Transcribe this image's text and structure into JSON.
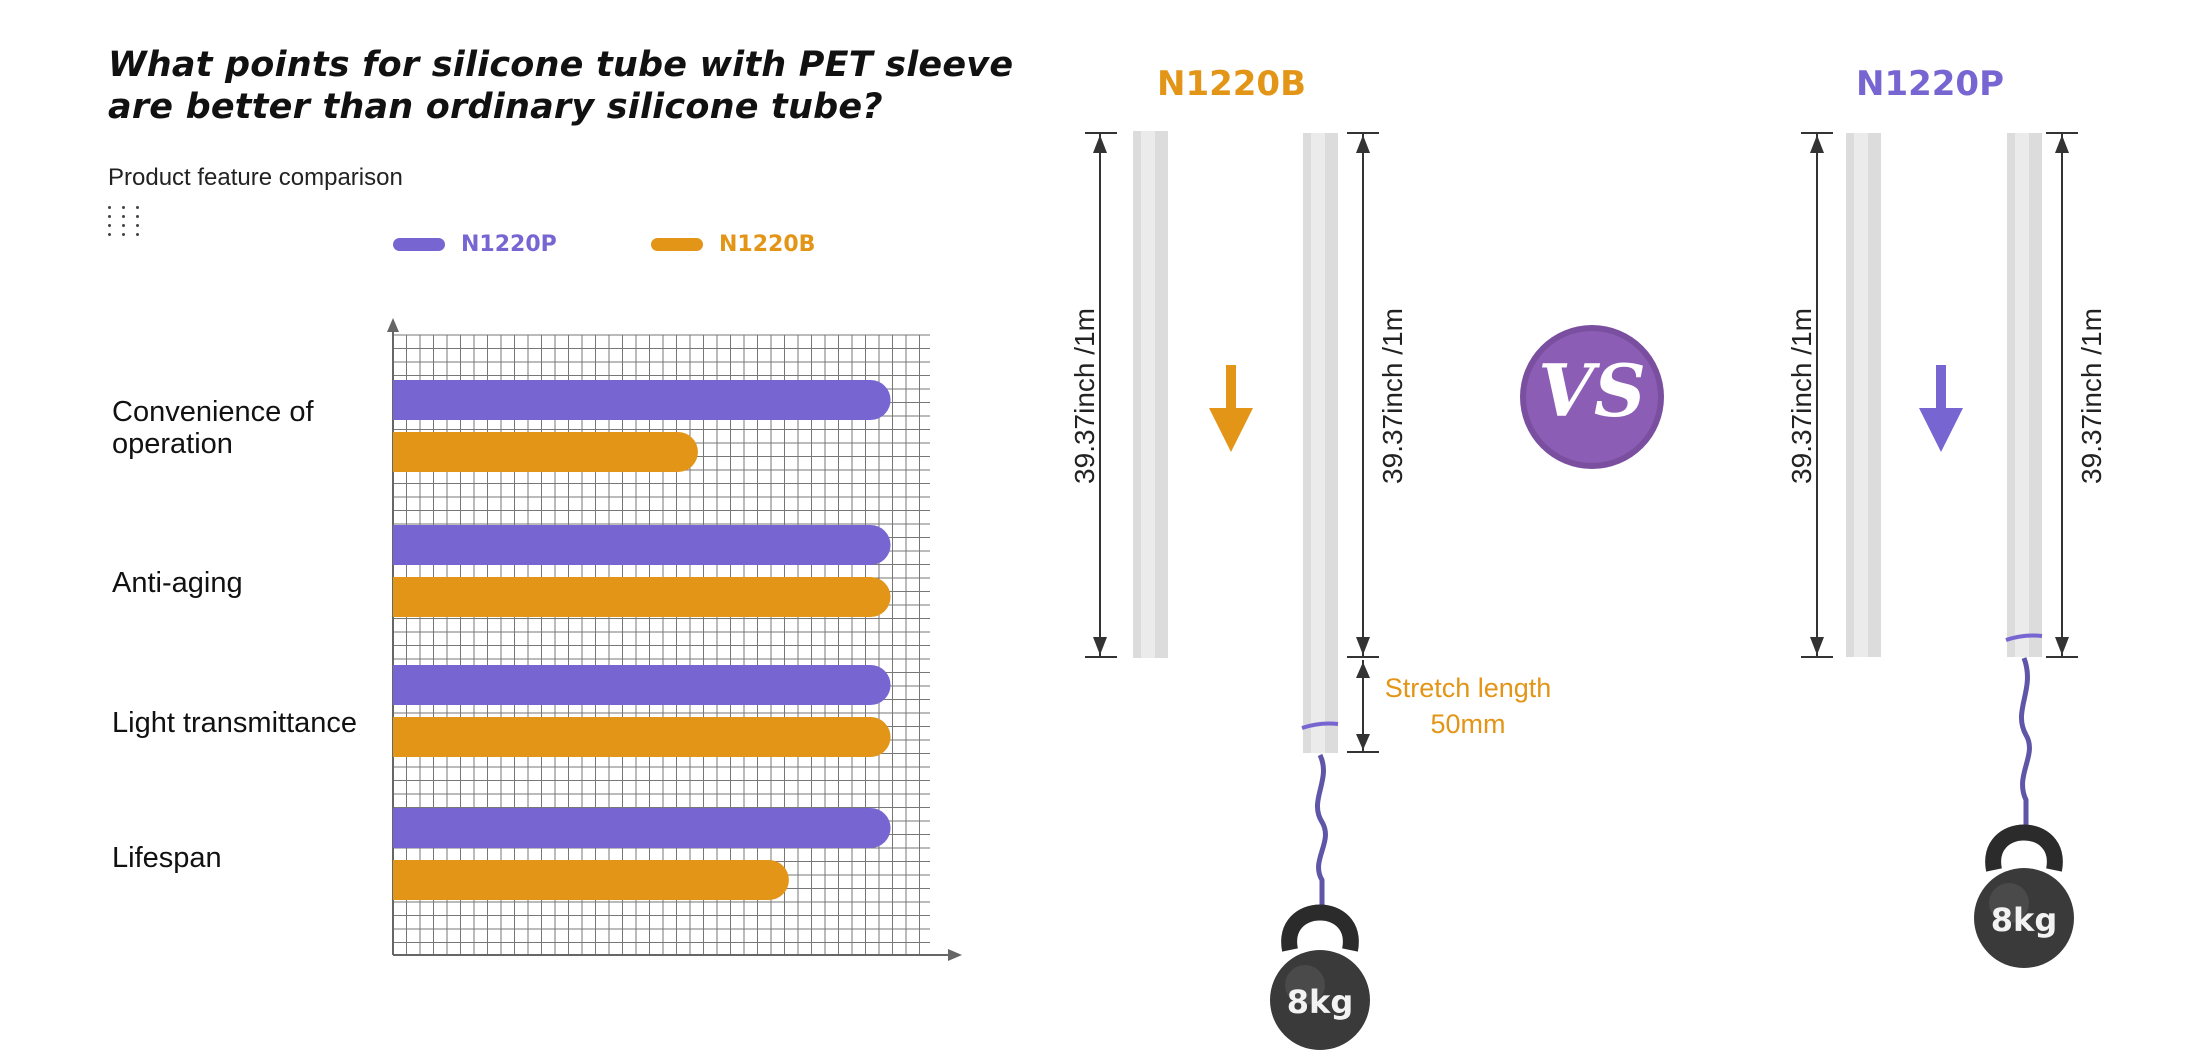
{
  "header": {
    "title": "What points for silicone tube with PET sleeve are better than ordinary silicone tube?",
    "subtitle": "Product feature comparison"
  },
  "colors": {
    "n1220p": "#7766d2",
    "n1220b": "#e29517",
    "grid": "#777777",
    "tube": "#dcdcdc"
  },
  "chart_data": {
    "type": "bar",
    "orientation": "horizontal",
    "grid": true,
    "legend_position": "top",
    "categories": [
      "Convenience of operation",
      "Anti-aging",
      "Light transmittance",
      "Lifespan"
    ],
    "series": [
      {
        "name": "N1220P",
        "values": [
          93,
          93,
          93,
          93
        ]
      },
      {
        "name": "N1220B",
        "values": [
          57,
          93,
          93,
          74
        ]
      }
    ],
    "xlim": [
      0,
      100
    ]
  },
  "legend": [
    {
      "name": "N1220P",
      "color": "#7766d2"
    },
    {
      "name": "N1220B",
      "color": "#e29517"
    }
  ],
  "category_labels": [
    "Convenience of\noperation",
    "Anti-aging",
    "Light transmittance",
    "Lifespan"
  ],
  "comparison": {
    "left": {
      "name": "N1220B",
      "color": "#e29517",
      "length_label": "39.37inch /1m",
      "weight": "8kg"
    },
    "right": {
      "name": "N1220P",
      "color": "#7766d2",
      "length_label": "39.37inch /1m",
      "weight": "8kg"
    },
    "stretch_label": [
      "Stretch length",
      "50mm"
    ],
    "vs": "VS"
  }
}
